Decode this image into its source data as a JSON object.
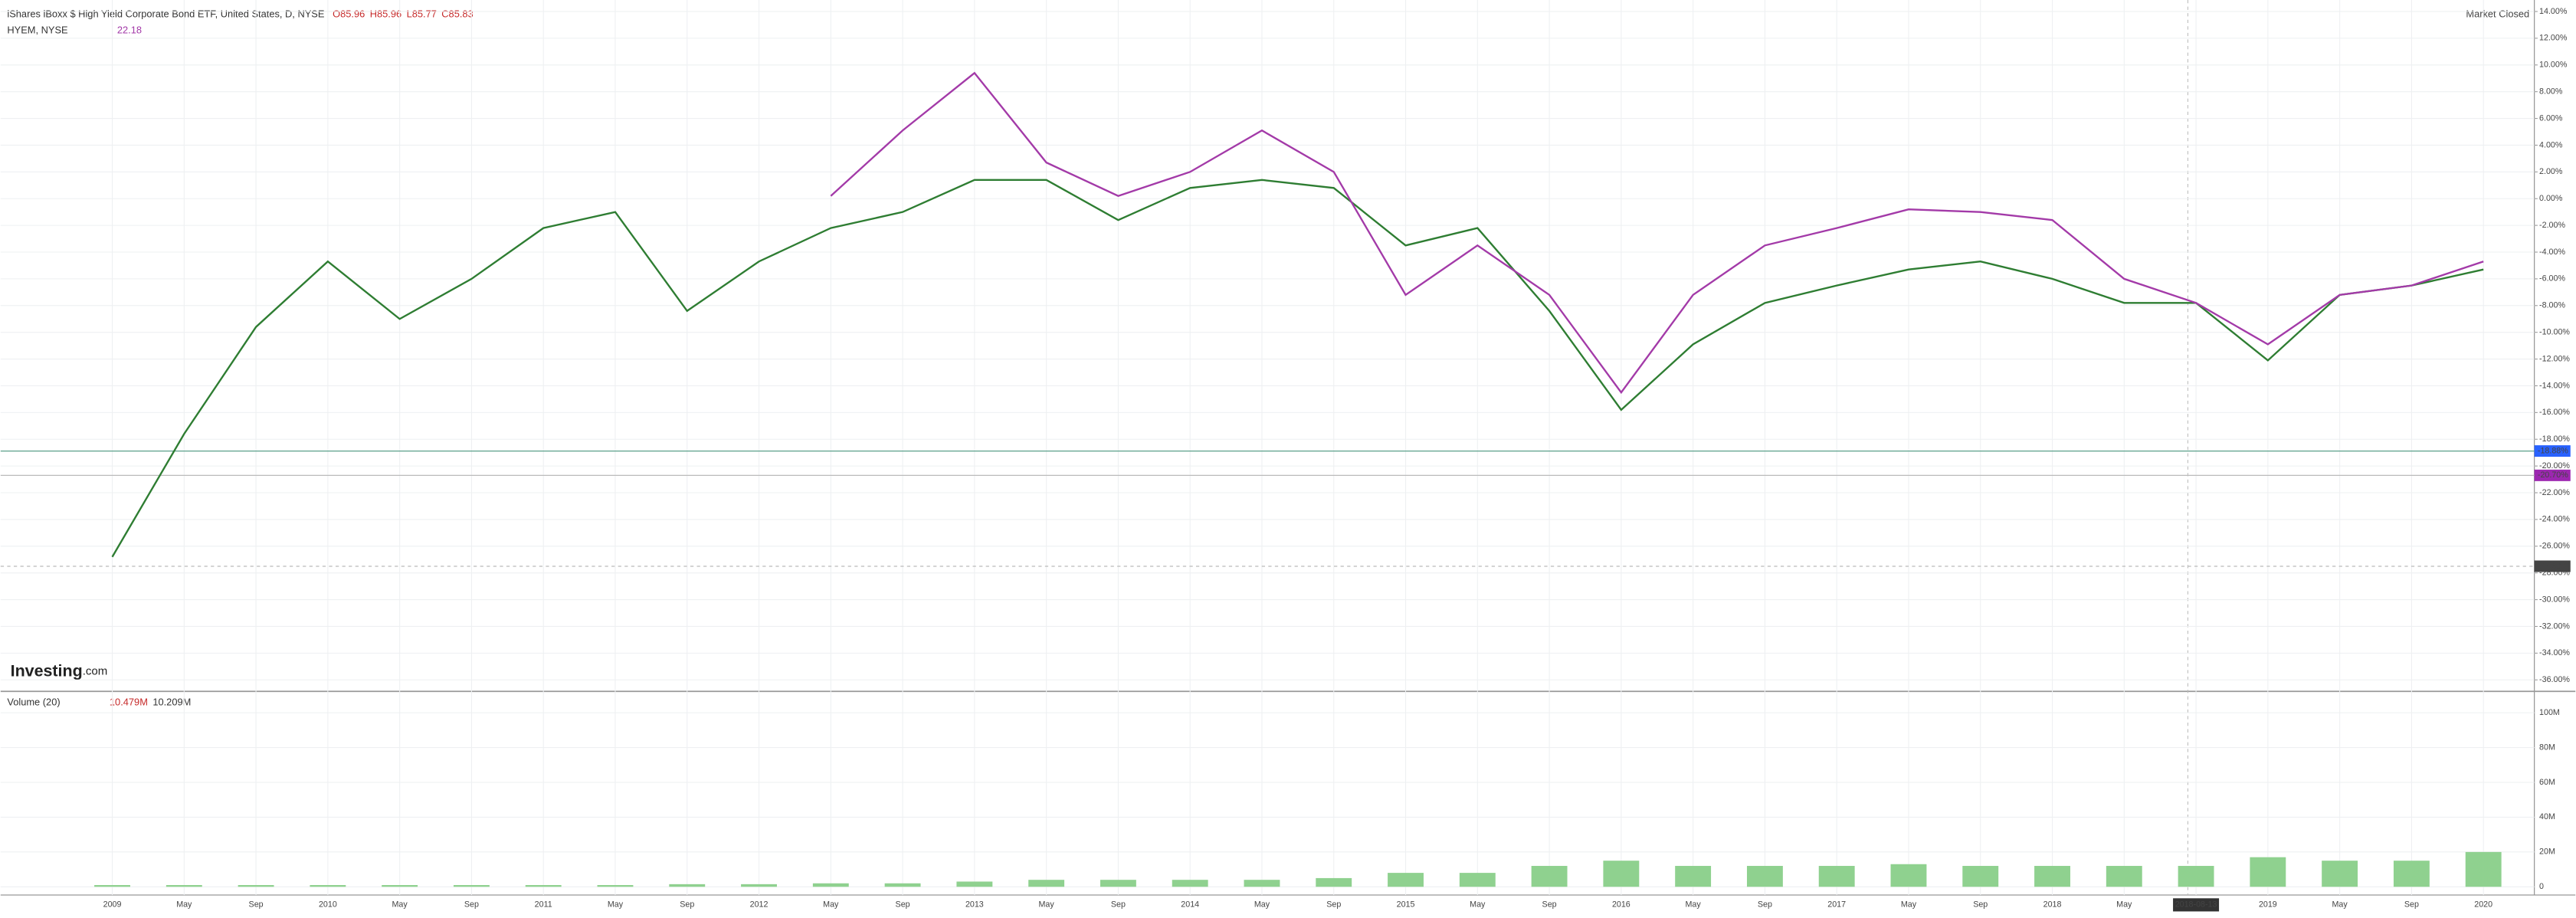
{
  "header": {
    "title": "iShares iBoxx $ High Yield Corporate Bond ETF, United States, D, NYSE",
    "open": "O85.96",
    "high": "H85.96",
    "low": "L85.77",
    "close": "C85.83",
    "second_symbol": "HYEM, NYSE",
    "second_value": "22.18",
    "status": "Market Closed",
    "volume_title": "Volume (20)",
    "volume_value_1": "10.479M",
    "volume_value_2": "10.209M",
    "logo": "Investing",
    "logo_suffix": ".com"
  },
  "chart_data": {
    "type": "line",
    "categories": [
      "2009",
      "May",
      "Sep",
      "2010",
      "May",
      "Sep",
      "2011",
      "May",
      "Sep",
      "2012",
      "May",
      "Sep",
      "2013",
      "May",
      "Sep",
      "2014",
      "May",
      "Sep",
      "2015",
      "May",
      "Sep",
      "2016",
      "May",
      "Sep",
      "2017",
      "May",
      "Sep",
      "2018",
      "May",
      "2018-08-13",
      "2019",
      "May",
      "Sep",
      "2020"
    ],
    "series": [
      {
        "name": "HYG",
        "color": "#2e7d32",
        "values": [
          -26.8,
          -17.6,
          -9.6,
          -4.7,
          -9,
          -6,
          -2.2,
          -1,
          -8.4,
          -4.7,
          -2.2,
          -1,
          1.4,
          1.4,
          -1.6,
          0.8,
          1.4,
          0.8,
          -3.5,
          -2.2,
          -8.4,
          -15.8,
          -10.9,
          -7.8,
          -6.5,
          -5.3,
          -4.7,
          -6,
          -7.8,
          -7.8,
          -12.1,
          -7.2,
          -6.5,
          -5.3
        ]
      },
      {
        "name": "HYEM",
        "color": "#a33aa8",
        "values": [
          null,
          null,
          null,
          null,
          null,
          null,
          null,
          null,
          null,
          null,
          0.2,
          5.1,
          9.4,
          2.7,
          0.2,
          2,
          5.1,
          2,
          -7.2,
          -3.5,
          -7.2,
          -14.5,
          -7.2,
          -3.5,
          -2.2,
          -0.8,
          -1,
          -1.6,
          -6,
          -7.8,
          -10.9,
          -7.2,
          -6.5,
          -4.7
        ]
      }
    ],
    "ylim": [
      14,
      -36
    ],
    "yticks": [
      {
        "value": 14,
        "label": "14.00%"
      },
      {
        "value": 12,
        "label": "12.00%"
      },
      {
        "value": 10,
        "label": "10.00%"
      },
      {
        "value": 8,
        "label": "8.00%"
      },
      {
        "value": 6,
        "label": "6.00%"
      },
      {
        "value": 4,
        "label": "4.00%"
      },
      {
        "value": 2,
        "label": "2.00%"
      },
      {
        "value": 0,
        "label": "0.00%"
      },
      {
        "value": -2,
        "label": "-2.00%"
      },
      {
        "value": -4,
        "label": "-4.00%"
      },
      {
        "value": -6,
        "label": "-6.00%"
      },
      {
        "value": -8,
        "label": "-8.00%"
      },
      {
        "value": -10,
        "label": "-10.00%"
      },
      {
        "value": -12,
        "label": "-12.00%"
      },
      {
        "value": -14,
        "label": "-14.00%"
      },
      {
        "value": -16,
        "label": "-16.00%"
      },
      {
        "value": -18,
        "label": "-18.00%"
      },
      {
        "value": -20,
        "label": "-20.00%"
      },
      {
        "value": -22,
        "label": "-22.00%"
      },
      {
        "value": -24,
        "label": "-24.00%"
      },
      {
        "value": -26,
        "label": "-26.00%"
      },
      {
        "value": -28,
        "label": "-28.00%"
      },
      {
        "value": -30,
        "label": "-30.00%"
      },
      {
        "value": -32,
        "label": "-32.00%"
      },
      {
        "value": -34,
        "label": "-34.00%"
      },
      {
        "value": -36,
        "label": "-36.00%"
      }
    ],
    "last_values": [
      {
        "value": -18.88,
        "label": "-18.88%",
        "color": "#2962ff"
      },
      {
        "value": -20.7,
        "label": "-20.70%",
        "color": "#9c27b0"
      },
      {
        "value": -27.5,
        "label": "-27.50",
        "color": "#444444"
      }
    ],
    "grid": true,
    "volume": {
      "name": "Volume",
      "color": "#8fd18f",
      "values": [
        1,
        1,
        1,
        1,
        1,
        1,
        1,
        1,
        1.5,
        1.5,
        2,
        2,
        3,
        4,
        4,
        4,
        4,
        5,
        8,
        8,
        12,
        15,
        12,
        12,
        12,
        13,
        12,
        12,
        12,
        12,
        17,
        15,
        15,
        20
      ],
      "ylim": [
        0,
        100
      ],
      "yticks": [
        {
          "value": 0,
          "label": "0"
        },
        {
          "value": 20,
          "label": "20M"
        },
        {
          "value": 40,
          "label": "40M"
        },
        {
          "value": 60,
          "label": "60M"
        },
        {
          "value": 80,
          "label": "80M"
        },
        {
          "value": 100,
          "label": "100M"
        }
      ]
    }
  }
}
